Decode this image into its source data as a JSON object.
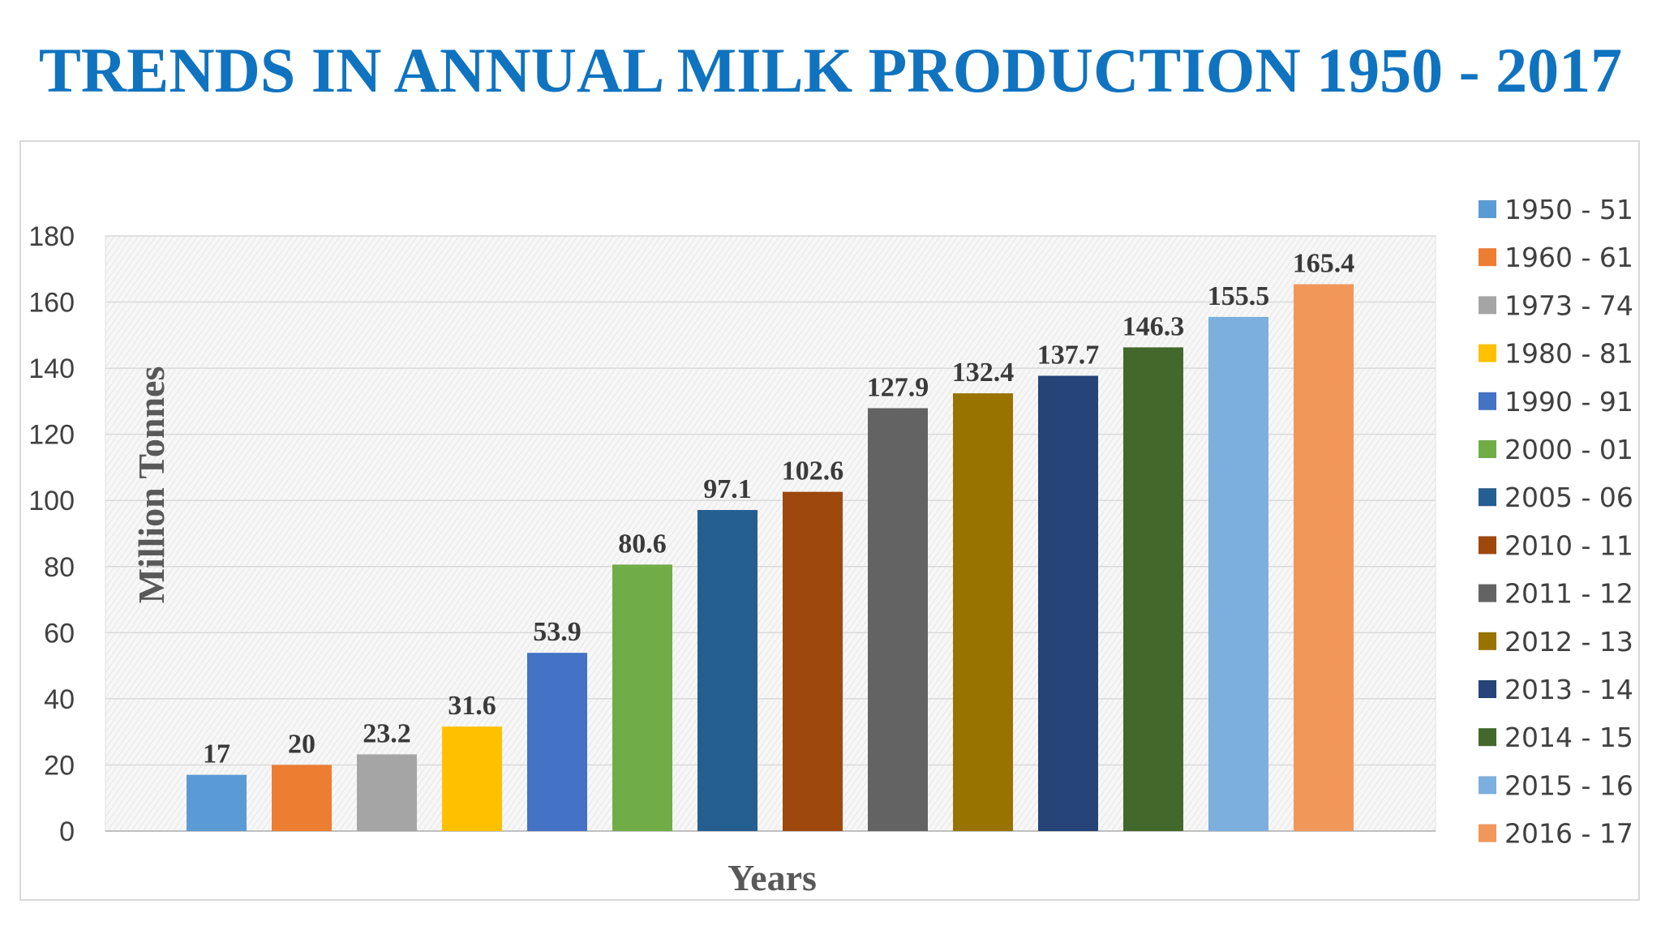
{
  "title": "TRENDS IN ANNUAL MILK PRODUCTION 1950 - 2017",
  "chart_data": {
    "type": "bar",
    "xlabel": "Years",
    "ylabel": "Million Tonnes",
    "ylim": [
      0,
      180
    ],
    "yticks": [
      "0",
      "20",
      "40",
      "60",
      "80",
      "100",
      "120",
      "140",
      "160",
      "180"
    ],
    "grid": true,
    "legend_position": "right",
    "series": [
      {
        "name": "1950 - 51",
        "value": 17,
        "label": "17",
        "color": "#5b9bd5"
      },
      {
        "name": "1960 - 61",
        "value": 20,
        "label": "20",
        "color": "#ed7d31"
      },
      {
        "name": "1973 - 74",
        "value": 23.2,
        "label": "23.2",
        "color": "#a5a5a5"
      },
      {
        "name": "1980 - 81",
        "value": 31.6,
        "label": "31.6",
        "color": "#ffc000"
      },
      {
        "name": "1990 - 91",
        "value": 53.9,
        "label": "53.9",
        "color": "#4472c4"
      },
      {
        "name": "2000 - 01",
        "value": 80.6,
        "label": "80.6",
        "color": "#70ad47"
      },
      {
        "name": "2005 - 06",
        "value": 97.1,
        "label": "97.1",
        "color": "#255e91"
      },
      {
        "name": "2010 - 11",
        "value": 102.6,
        "label": "102.6",
        "color": "#9e480e"
      },
      {
        "name": "2011 - 12",
        "value": 127.9,
        "label": "127.9",
        "color": "#636363"
      },
      {
        "name": "2012 - 13",
        "value": 132.4,
        "label": "132.4",
        "color": "#997300"
      },
      {
        "name": "2013 - 14",
        "value": 137.7,
        "label": "137.7",
        "color": "#264478"
      },
      {
        "name": "2014 - 15",
        "value": 146.3,
        "label": "146.3",
        "color": "#43682b"
      },
      {
        "name": "2015 - 16",
        "value": 155.5,
        "label": "155.5",
        "color": "#7cafdd"
      },
      {
        "name": "2016 - 17",
        "value": 165.4,
        "label": "165.4",
        "color": "#f1975a"
      }
    ]
  }
}
